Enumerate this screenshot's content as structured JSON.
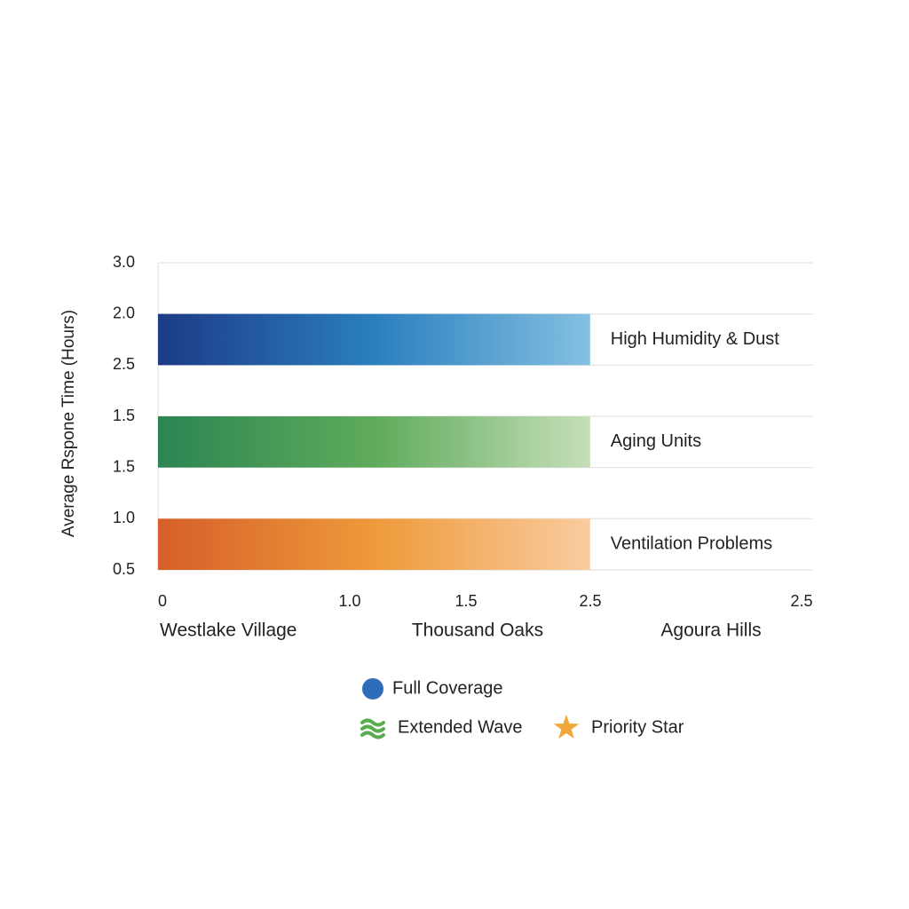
{
  "chart_data": {
    "type": "hbar",
    "y_axis_title": "Average Rspone Time (Hours)",
    "y_axis_labels": [
      "3.0",
      "2.0",
      "2.5",
      "1.5",
      "1.5",
      "1.0",
      "0.5"
    ],
    "x_axis_labels": [
      "0",
      "1.0",
      "1.5",
      "2.5",
      "2.5"
    ],
    "xlim": [
      0,
      3.79
    ],
    "categories": [
      "Westlake Village",
      "Thousand Oaks",
      "Agoura Hills"
    ],
    "bars": [
      {
        "label": "High Humidity & Dust",
        "value": 2.5,
        "colors": [
          "#1d3b87",
          "#2a7fbe",
          "#84c0e2"
        ]
      },
      {
        "label": "Aging Units",
        "value": 2.5,
        "colors": [
          "#2b8552",
          "#5fab5c",
          "#c6dfb9"
        ]
      },
      {
        "label": "Ventilation Problems",
        "value": 2.5,
        "colors": [
          "#d65f29",
          "#ee9a3a",
          "#f9cc9f"
        ]
      }
    ],
    "legend": [
      {
        "name": "Full Coverage",
        "icon": "circle",
        "color": "#2f6db8"
      },
      {
        "name": "Extended Wave",
        "icon": "wave",
        "color": "#5aad4e"
      },
      {
        "name": "Priority Star",
        "icon": "star",
        "color": "#f0a83a"
      }
    ]
  }
}
